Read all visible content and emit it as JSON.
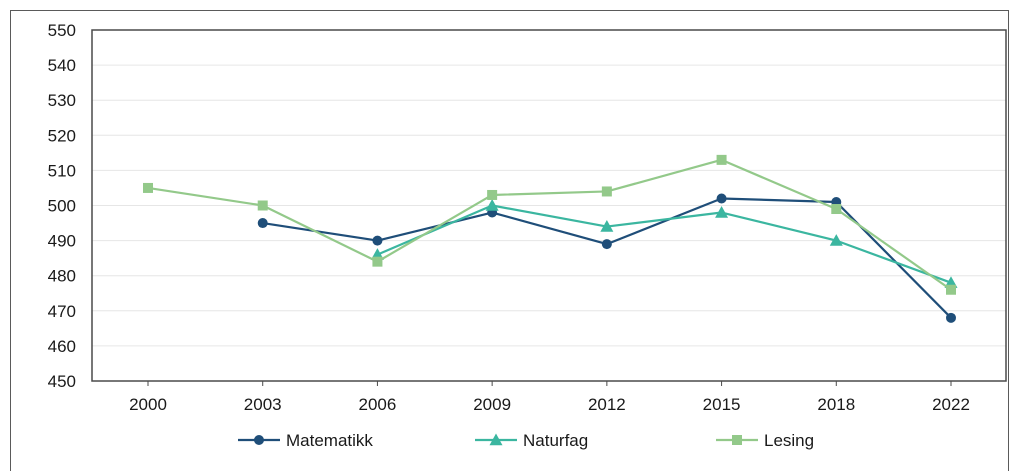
{
  "chart_data": {
    "type": "line",
    "title": "",
    "xlabel": "",
    "ylabel": "",
    "categories": [
      "2000",
      "2003",
      "2006",
      "2009",
      "2012",
      "2015",
      "2018",
      "2022"
    ],
    "ylim": [
      450,
      550
    ],
    "yticks": [
      450,
      460,
      470,
      480,
      490,
      500,
      510,
      520,
      530,
      540,
      550
    ],
    "grid": true,
    "legend_position": "bottom",
    "series": [
      {
        "name": "Matematikk",
        "color": "#1f4e79",
        "marker": "circle",
        "values": [
          null,
          495,
          490,
          498,
          489,
          502,
          501,
          468
        ]
      },
      {
        "name": "Naturfag",
        "color": "#3bb6a0",
        "marker": "triangle",
        "values": [
          null,
          null,
          486,
          500,
          494,
          498,
          490,
          478
        ]
      },
      {
        "name": "Lesing",
        "color": "#93c98a",
        "marker": "square",
        "values": [
          505,
          500,
          484,
          503,
          504,
          513,
          499,
          476
        ]
      }
    ]
  }
}
